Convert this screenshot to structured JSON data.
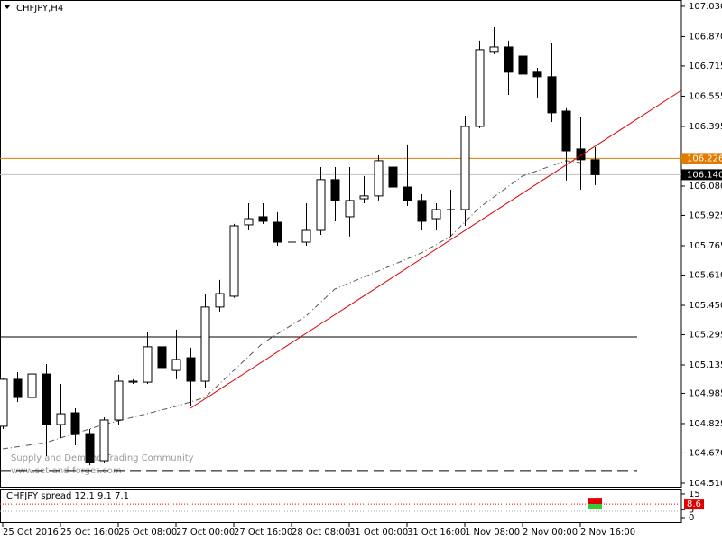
{
  "chart_data": {
    "type": "candlestick",
    "title": "CHFJPY,H4",
    "categories": [
      "25 Oct 2016",
      null,
      null,
      null,
      "25 Oct 16:00",
      null,
      null,
      null,
      "26 Oct 08:00",
      null,
      null,
      null,
      "27 Oct 00:00",
      null,
      null,
      null,
      "27 Oct 16:00",
      null,
      null,
      null,
      "28 Oct 08:00",
      null,
      null,
      null,
      "31 Oct 00:00",
      null,
      null,
      null,
      "31 Oct 16:00",
      null,
      null,
      null,
      "1 Nov 08:00",
      null,
      null,
      null,
      "2 Nov 00:00",
      null,
      null,
      null,
      "2 Nov 16:00",
      null
    ],
    "open": [
      104.811,
      105.059,
      104.963,
      105.087,
      104.82,
      104.882,
      104.772,
      104.629,
      104.844,
      105.044,
      105.044,
      105.231,
      105.106,
      105.173,
      105.049,
      105.441,
      105.498,
      105.875,
      105.918,
      105.889,
      105.784,
      105.784,
      105.846,
      106.114,
      105.918,
      106.013,
      106.028,
      106.18,
      106.075,
      106.004,
      105.908,
      105.956,
      105.956,
      106.395,
      106.787,
      106.815,
      106.767,
      106.682,
      106.658,
      106.476,
      106.276,
      106.219
    ],
    "high": [
      105.068,
      105.097,
      105.121,
      105.14,
      105.035,
      104.906,
      104.796,
      104.858,
      105.083,
      105.059,
      105.307,
      105.259,
      105.321,
      105.226,
      105.512,
      105.584,
      105.88,
      105.989,
      105.989,
      105.942,
      106.109,
      105.989,
      106.18,
      106.18,
      106.18,
      106.133,
      106.242,
      106.276,
      106.3,
      106.037,
      105.989,
      106.061,
      106.452,
      106.849,
      106.92,
      106.849,
      106.787,
      106.705,
      106.834,
      106.491,
      106.443,
      106.285
    ],
    "low": [
      104.796,
      104.939,
      104.939,
      104.653,
      104.749,
      104.71,
      104.605,
      104.62,
      104.82,
      105.035,
      105.035,
      105.097,
      105.059,
      104.916,
      105.011,
      105.417,
      105.49,
      105.846,
      105.88,
      105.765,
      105.765,
      105.765,
      105.822,
      105.894,
      105.813,
      105.989,
      106.004,
      106.037,
      105.975,
      105.846,
      105.846,
      105.813,
      105.87,
      106.386,
      106.777,
      106.562,
      106.548,
      106.548,
      106.419,
      106.109,
      106.061,
      106.085
    ],
    "close": [
      105.059,
      104.963,
      105.087,
      104.82,
      104.877,
      104.772,
      104.62,
      104.844,
      105.049,
      105.049,
      105.231,
      105.121,
      105.164,
      105.049,
      105.441,
      105.512,
      105.87,
      105.908,
      105.894,
      105.784,
      105.784,
      105.846,
      106.114,
      106.004,
      106.004,
      106.028,
      106.214,
      106.075,
      106.004,
      105.894,
      105.956,
      105.956,
      106.395,
      106.801,
      106.815,
      106.682,
      106.672,
      106.658,
      106.467,
      106.266,
      106.219,
      106.14
    ],
    "moving_average": {
      "x": [
        0,
        3,
        7,
        12,
        14,
        16,
        18,
        21,
        23,
        26,
        29,
        31,
        33,
        36,
        39,
        40
      ],
      "values": [
        104.691,
        104.725,
        104.82,
        104.916,
        104.963,
        105.106,
        105.25,
        105.393,
        105.536,
        105.631,
        105.727,
        105.813,
        105.966,
        106.133,
        106.214,
        106.204
      ],
      "color": "#555555"
    },
    "trendline": {
      "x": [
        13,
        40
      ],
      "values": [
        104.906,
        106.24
      ],
      "color": "#dd0000"
    },
    "hlines": [
      {
        "value": 106.226,
        "color": "#e07b00",
        "labeled": true
      },
      {
        "value": 105.283,
        "color": "#000000",
        "dashed": false
      },
      {
        "value": 104.577,
        "color": "#000000",
        "dashed": true
      }
    ],
    "last_price": {
      "value": 106.14,
      "label": "106.140"
    },
    "ylim": [
      104.486,
      107.063
    ],
    "yticks": [
      {
        "value": 107.03,
        "label": "107.030"
      },
      {
        "value": 106.87,
        "label": "106.870"
      },
      106.715,
      106.555,
      106.395,
      {
        "value": 106.08,
        "label": "106.080"
      },
      105.925,
      105.765,
      {
        "value": 105.61,
        "label": "105.610"
      },
      {
        "value": 105.45,
        "label": "105.450"
      },
      105.295,
      105.135,
      104.985,
      104.825,
      {
        "value": 104.67,
        "label": "104.670"
      },
      {
        "value": 104.51,
        "label": "104.510"
      }
    ],
    "watermark": [
      "Supply and Demand Trading Community",
      "www.set-and-forget.com"
    ],
    "spread": {
      "title": "CHFJPY spread 12.1 9.1 7.1",
      "value": 8.6,
      "ylim": [
        0,
        15
      ],
      "yticks": [
        0,
        5,
        15
      ]
    }
  }
}
